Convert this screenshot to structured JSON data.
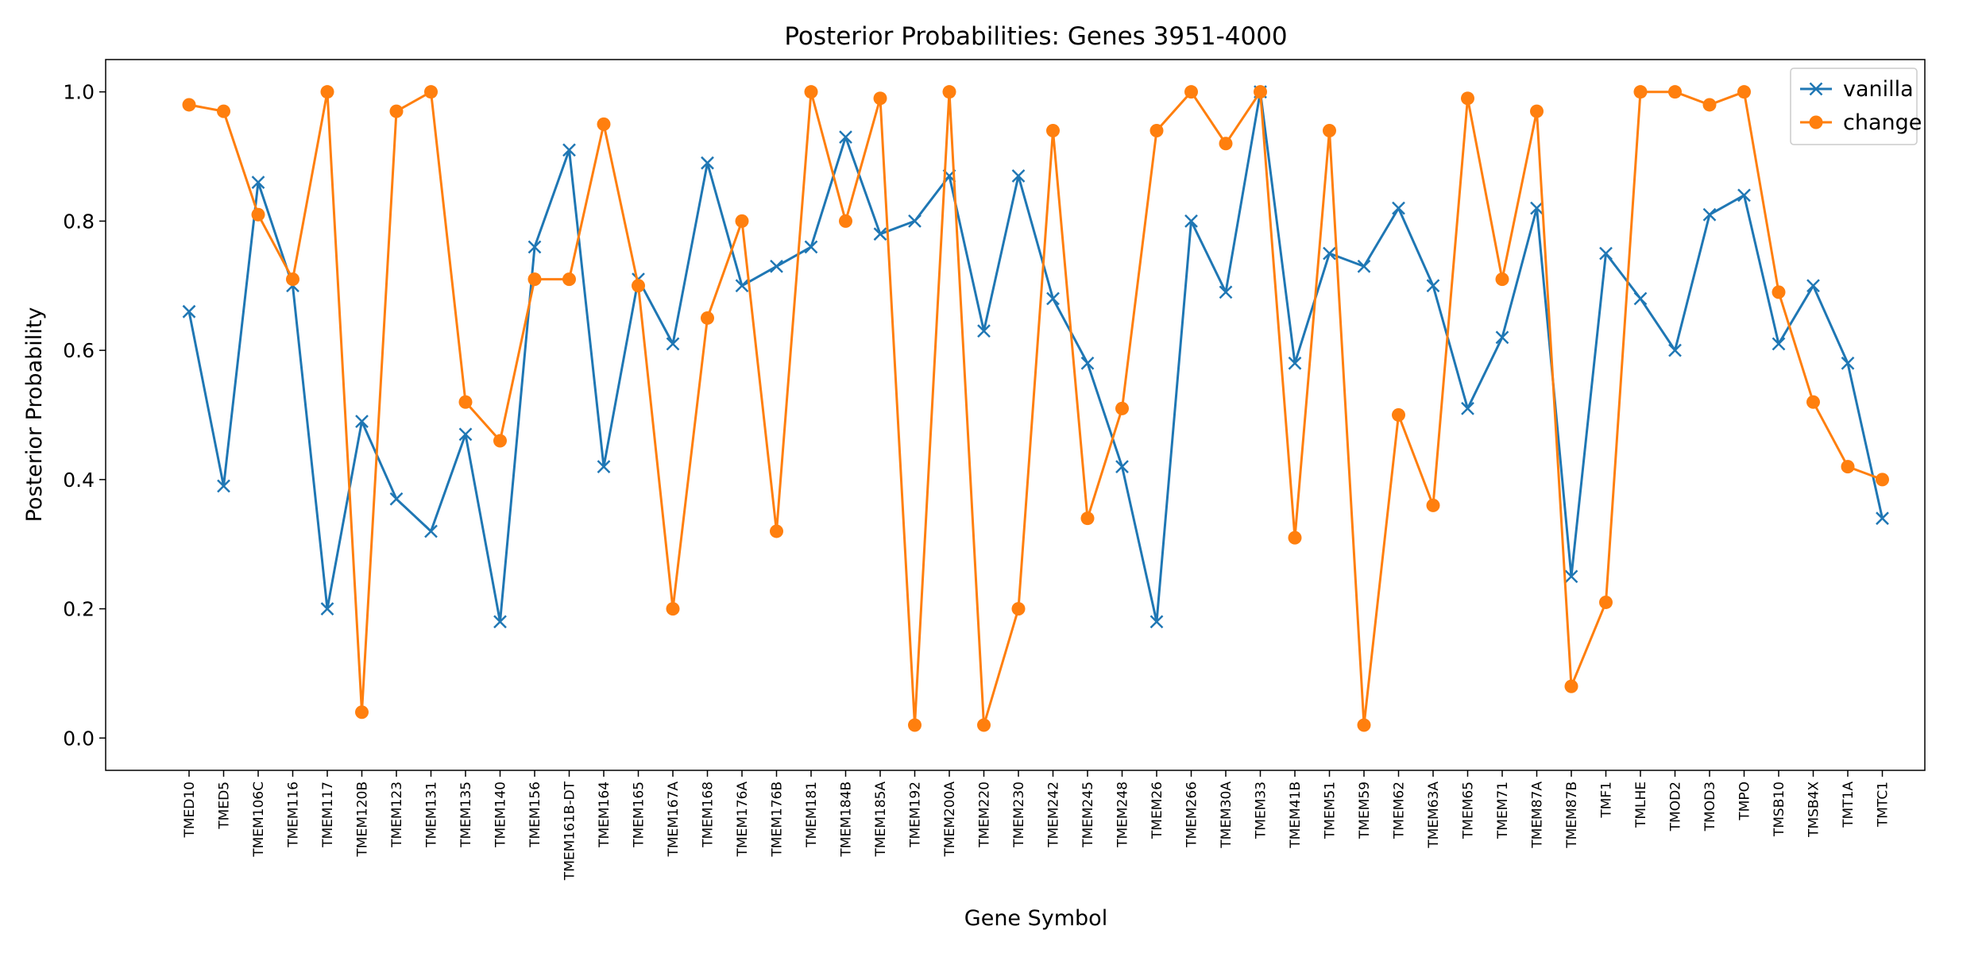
{
  "chart_data": {
    "type": "line",
    "title": "Posterior Probabilities: Genes 3951-4000",
    "xlabel": "Gene Symbol",
    "ylabel": "Posterior Probability",
    "ylim": [
      -0.05,
      1.05
    ],
    "yticks": [
      "0.0",
      "0.2",
      "0.4",
      "0.6",
      "0.8",
      "1.0"
    ],
    "grid": false,
    "legend_position": "top-right",
    "categories": [
      "TMED10",
      "TMED5",
      "TMEM106C",
      "TMEM116",
      "TMEM117",
      "TMEM120B",
      "TMEM123",
      "TMEM131",
      "TMEM135",
      "TMEM140",
      "TMEM156",
      "TMEM161B-DT",
      "TMEM164",
      "TMEM165",
      "TMEM167A",
      "TMEM168",
      "TMEM176A",
      "TMEM176B",
      "TMEM181",
      "TMEM184B",
      "TMEM185A",
      "TMEM192",
      "TMEM200A",
      "TMEM220",
      "TMEM230",
      "TMEM242",
      "TMEM245",
      "TMEM248",
      "TMEM26",
      "TMEM266",
      "TMEM30A",
      "TMEM33",
      "TMEM41B",
      "TMEM51",
      "TMEM59",
      "TMEM62",
      "TMEM63A",
      "TMEM65",
      "TMEM71",
      "TMEM87A",
      "TMEM87B",
      "TMF1",
      "TMLHE",
      "TMOD2",
      "TMOD3",
      "TMPO",
      "TMSB10",
      "TMSB4X",
      "TMT1A",
      "TMTC1"
    ],
    "series": [
      {
        "name": "vanilla",
        "color": "#1f77b4",
        "marker": "x",
        "values": [
          0.66,
          0.39,
          0.86,
          0.7,
          0.2,
          0.49,
          0.37,
          0.32,
          0.47,
          0.18,
          0.76,
          0.91,
          0.42,
          0.71,
          0.61,
          0.89,
          0.7,
          0.73,
          0.76,
          0.93,
          0.78,
          0.8,
          0.87,
          0.63,
          0.87,
          0.68,
          0.58,
          0.42,
          0.18,
          0.8,
          0.69,
          1.0,
          0.58,
          0.75,
          0.73,
          0.82,
          0.7,
          0.51,
          0.62,
          0.82,
          0.25,
          0.75,
          0.68,
          0.6,
          0.81,
          0.84,
          0.61,
          0.7,
          0.58,
          0.34
        ]
      },
      {
        "name": "change",
        "color": "#ff7f0e",
        "marker": "o",
        "values": [
          0.98,
          0.97,
          0.81,
          0.71,
          1.0,
          0.04,
          0.97,
          1.0,
          0.52,
          0.46,
          0.71,
          0.71,
          0.95,
          0.7,
          0.2,
          0.65,
          0.8,
          0.32,
          1.0,
          0.8,
          0.99,
          0.02,
          1.0,
          0.02,
          0.2,
          0.94,
          0.34,
          0.51,
          0.94,
          1.0,
          0.92,
          1.0,
          0.31,
          0.94,
          0.02,
          0.5,
          0.36,
          0.99,
          0.71,
          0.97,
          0.08,
          0.21,
          1.0,
          1.0,
          0.98,
          1.0,
          0.69,
          0.52,
          0.42,
          0.4
        ]
      }
    ]
  }
}
